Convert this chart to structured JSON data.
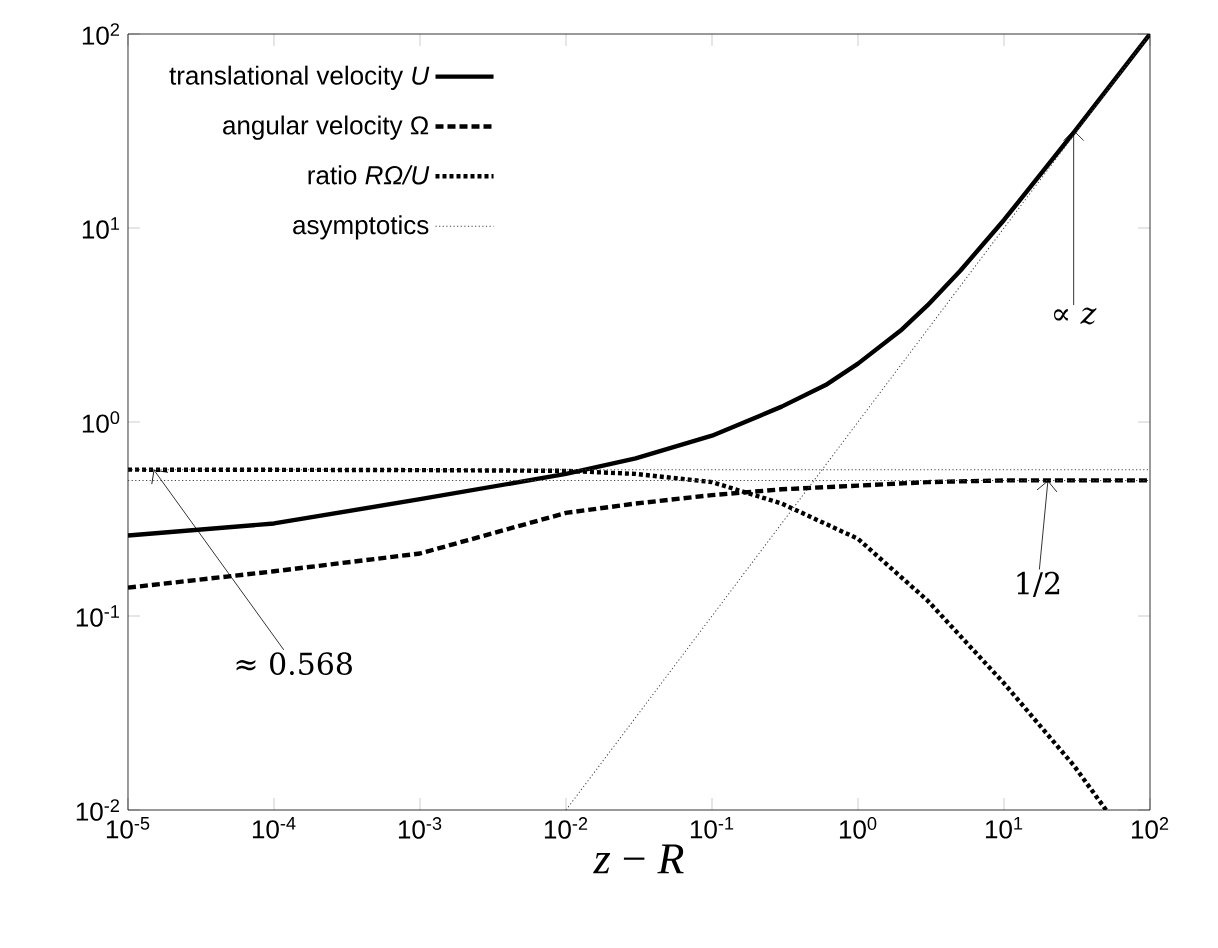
{
  "chart_data": {
    "type": "line",
    "log": "xy",
    "xlabel": "*z* − *R*",
    "xlim": [
      1e-05,
      100
    ],
    "ylim": [
      0.01,
      100
    ],
    "xticks": [
      {
        "value": 1e-05,
        "label": "10$^{-5}$"
      },
      {
        "value": 0.0001,
        "label": "10$^{-4}$"
      },
      {
        "value": 0.001,
        "label": "10$^{-3}$"
      },
      {
        "value": 0.01,
        "label": "10$^{-2}$"
      },
      {
        "value": 0.1,
        "label": "10$^{-1}$"
      },
      {
        "value": 1,
        "label": "10$^{0}$"
      },
      {
        "value": 10,
        "label": "10$^{1}$"
      },
      {
        "value": 100,
        "label": "10$^{2}$"
      }
    ],
    "yticks": [
      {
        "value": 0.01,
        "label": "10$^{-2}$"
      },
      {
        "value": 0.1,
        "label": "10$^{-1}$"
      },
      {
        "value": 1,
        "label": "10$^{0}$"
      },
      {
        "value": 10,
        "label": "10$^{1}$"
      },
      {
        "value": 100,
        "label": "10$^{2}$"
      }
    ],
    "legend": "top left",
    "grid": false,
    "marker": "none",
    "series": [
      {
        "name": "translational velocity *U*",
        "color": "#000000",
        "line_style": "solid",
        "x": [
          1e-05,
          0.0001,
          0.001,
          0.01,
          0.03,
          0.1,
          0.3,
          0.6,
          1,
          2,
          3,
          5,
          10,
          30,
          100
        ],
        "values": [
          0.26,
          0.3,
          0.4,
          0.54,
          0.65,
          0.85,
          1.2,
          1.55,
          2.0,
          3.0,
          4.0,
          6.0,
          11,
          31,
          100
        ]
      },
      {
        "name": "angular velocity Ω",
        "color": "#000000",
        "line_style": "dashed",
        "x": [
          1e-05,
          0.0001,
          0.001,
          0.01,
          0.03,
          0.1,
          0.3,
          1,
          3,
          10,
          100
        ],
        "values": [
          0.14,
          0.17,
          0.21,
          0.34,
          0.38,
          0.42,
          0.45,
          0.47,
          0.49,
          0.5,
          0.5
        ]
      },
      {
        "name": "ratio *RΩ/U*",
        "color": "#000000",
        "line_style": "dotted",
        "x": [
          1e-05,
          0.0001,
          0.001,
          0.01,
          0.03,
          0.1,
          0.3,
          1,
          3,
          10,
          30,
          50
        ],
        "values": [
          0.568,
          0.567,
          0.565,
          0.56,
          0.54,
          0.49,
          0.38,
          0.25,
          0.12,
          0.045,
          0.017,
          0.01
        ]
      },
      {
        "name": "asymptotics",
        "color": "#444444",
        "line_style": "dotted",
        "x": [
          0.01,
          100
        ],
        "values": [
          0.01,
          100
        ]
      },
      {
        "color": "#444444",
        "line_style": "dotted",
        "x": [
          1e-05,
          100
        ],
        "values": [
          0.568,
          0.568
        ]
      },
      {
        "color": "#444444",
        "line_style": "dotted",
        "x": [
          1e-05,
          100
        ],
        "values": [
          0.5,
          0.5
        ]
      }
    ],
    "annotations": [
      {
        "text": "≈ 0.568",
        "x": 1.5e-05,
        "y": 0.568
      },
      {
        "text": "1/2",
        "x": 20,
        "y": 0.5
      },
      {
        "text": "∝ *z*",
        "x": 30,
        "y": 32
      }
    ]
  }
}
